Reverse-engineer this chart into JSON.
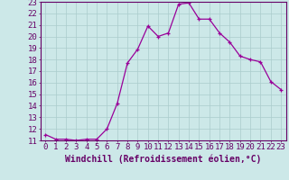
{
  "x": [
    0,
    1,
    2,
    3,
    4,
    5,
    6,
    7,
    8,
    9,
    10,
    11,
    12,
    13,
    14,
    15,
    16,
    17,
    18,
    19,
    20,
    21,
    22,
    23
  ],
  "y": [
    11.5,
    11.1,
    11.1,
    11.0,
    11.1,
    11.1,
    12.0,
    14.2,
    17.7,
    18.9,
    20.9,
    20.0,
    20.3,
    22.8,
    22.9,
    21.5,
    21.5,
    20.3,
    19.5,
    18.3,
    18.0,
    17.8,
    16.1,
    15.4
  ],
  "line_color": "#990099",
  "marker": "+",
  "marker_size": 3.5,
  "bg_color": "#cce8e8",
  "grid_color": "#aacccc",
  "xlabel": "Windchill (Refroidissement éolien,°C)",
  "xlabel_fontsize": 7,
  "tick_fontsize": 6.5,
  "ylim": [
    11,
    23
  ],
  "xlim": [
    -0.5,
    23.5
  ],
  "yticks": [
    11,
    12,
    13,
    14,
    15,
    16,
    17,
    18,
    19,
    20,
    21,
    22,
    23
  ],
  "xticks": [
    0,
    1,
    2,
    3,
    4,
    5,
    6,
    7,
    8,
    9,
    10,
    11,
    12,
    13,
    14,
    15,
    16,
    17,
    18,
    19,
    20,
    21,
    22,
    23
  ],
  "axis_label_color": "#660066",
  "tick_color": "#660066",
  "spine_color": "#660066"
}
